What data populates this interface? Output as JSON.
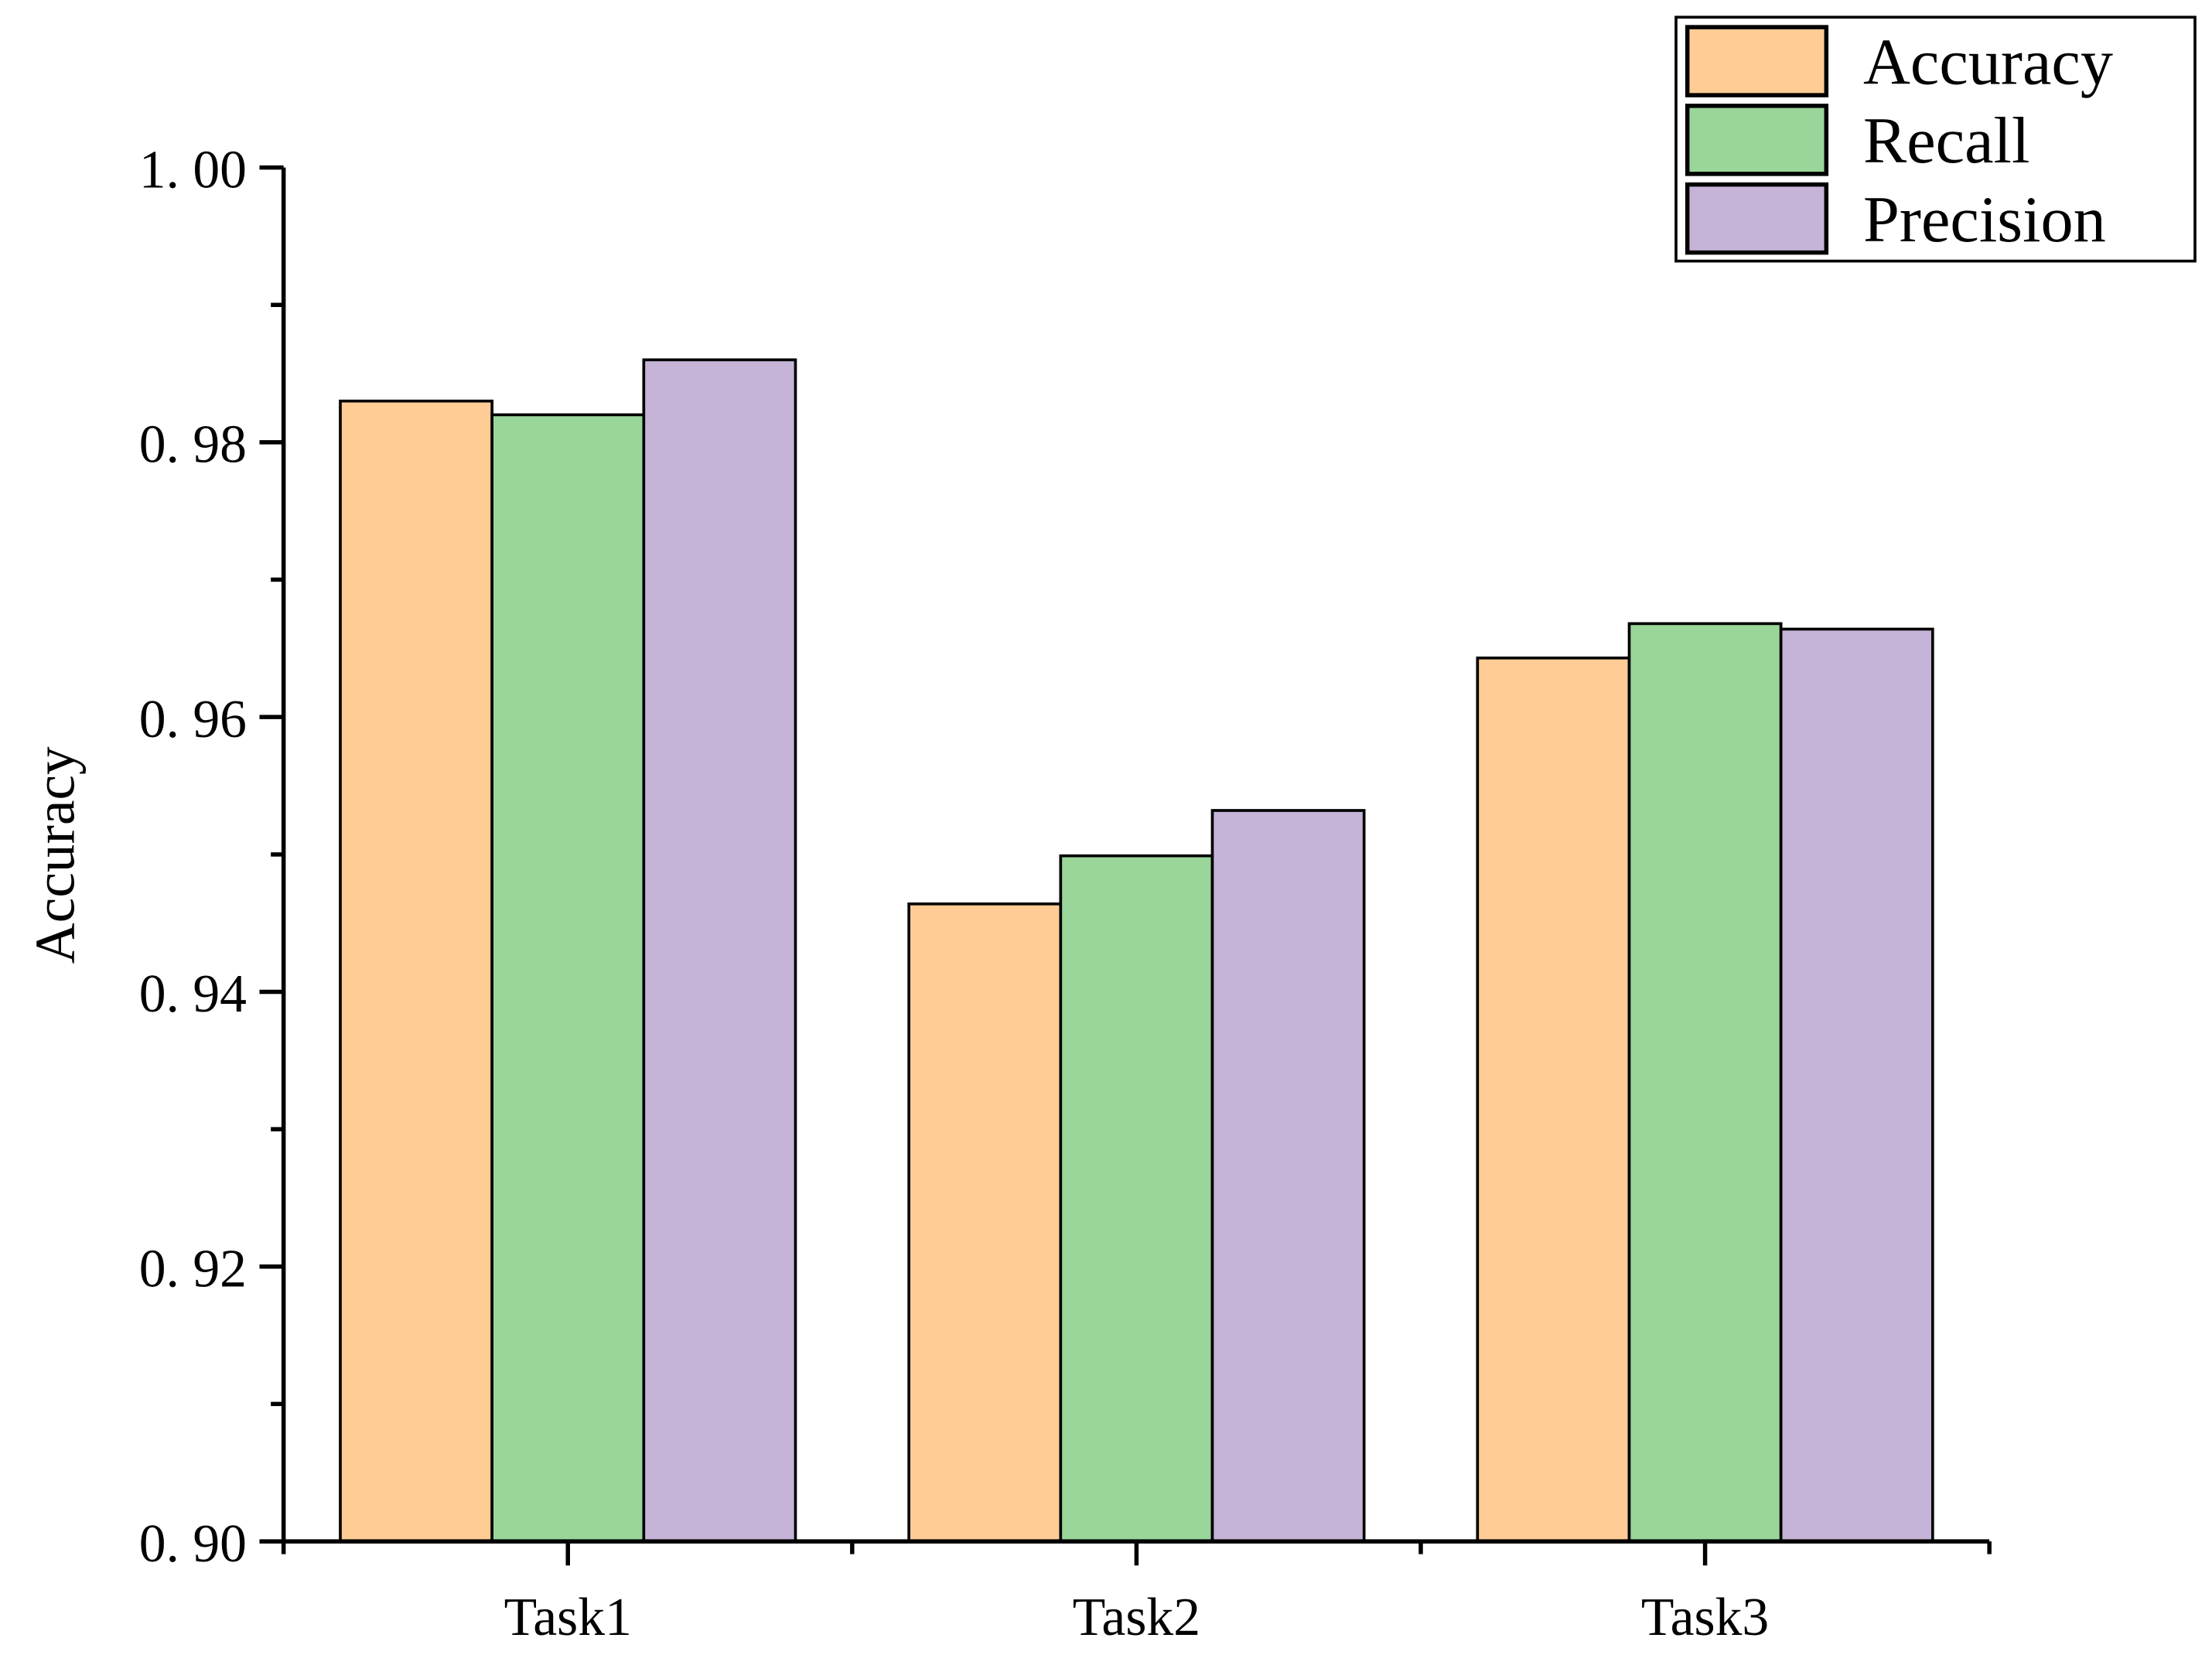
{
  "chart_data": {
    "type": "bar",
    "title": "",
    "xlabel": "",
    "ylabel": "Accuracy",
    "ylim": [
      0.9,
      1.0
    ],
    "yticks": [
      "0.90",
      "0.92",
      "0.94",
      "0.96",
      "0.98",
      "1.00"
    ],
    "categories": [
      "Task1",
      "Task2",
      "Task3"
    ],
    "series": [
      {
        "name": "Accuracy",
        "color": "#FFCC95",
        "values": [
          0.983,
          0.9464,
          0.9643
        ]
      },
      {
        "name": "Recall",
        "color": "#9AD59A",
        "values": [
          0.982,
          0.9499,
          0.9668
        ]
      },
      {
        "name": "Precision",
        "color": "#C5B4D7",
        "values": [
          0.986,
          0.9532,
          0.9664
        ]
      }
    ],
    "grid": false,
    "legend_position": "top-right"
  }
}
